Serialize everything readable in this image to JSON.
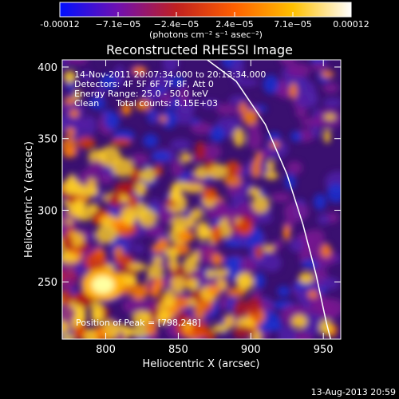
{
  "chart_data": {
    "type": "heatmap",
    "title": "Reconstructed RHESSI Image",
    "xlabel": "Heliocentric X (arcsec)",
    "ylabel": "Heliocentric Y (arcsec)",
    "xlim": [
      770,
      962
    ],
    "ylim": [
      210,
      405
    ],
    "x_ticks": [
      800,
      850,
      900,
      950
    ],
    "y_ticks": [
      250,
      300,
      350,
      400
    ],
    "colorbar": {
      "min": -0.00012,
      "max": 0.00012,
      "tick_labels": [
        "-0.00012",
        "−7.1e−05",
        "−2.4e−05",
        "2.4e−05",
        "7.1e−05",
        "0.00012"
      ],
      "unit_label": "(photons cm⁻² s⁻¹ asec⁻²)",
      "colors": [
        "#0010ff",
        "#7010b0",
        "#c02020",
        "#ff6000",
        "#ffc000",
        "#ffffff"
      ]
    },
    "annotations": [
      "14-Nov-2011 20:07:34.000 to 20:13:34.000",
      "Detectors: 4F 5F 6F 7F 8F, Att 0",
      "Energy Range: 25.0 - 50.0 keV",
      "Clean      Total counts: 8.15E+03"
    ],
    "peak_label": "Position of Peak = [798,248]",
    "peak": [
      798,
      248
    ],
    "limb_curve": [
      [
        870,
        405
      ],
      [
        890,
        390
      ],
      [
        910,
        360
      ],
      [
        925,
        325
      ],
      [
        936,
        290
      ],
      [
        945,
        255
      ],
      [
        952,
        222
      ],
      [
        955,
        210
      ]
    ],
    "grid": false
  },
  "footer": {
    "timestamp": "13-Aug-2013 20:59"
  }
}
